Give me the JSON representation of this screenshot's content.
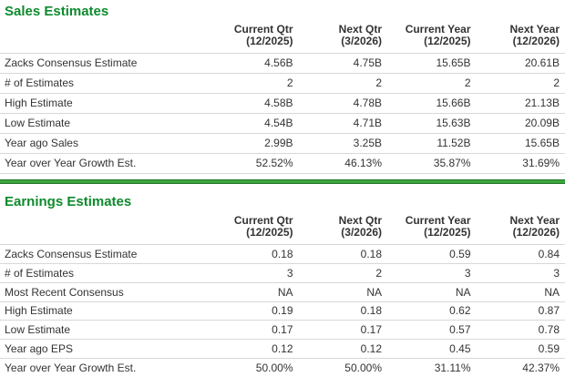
{
  "colors": {
    "title_green": "#0e8a2d",
    "divider_green": "#3fa43f",
    "divider_edge_green": "#1e7a24",
    "row_border": "#d8d8d8",
    "text": "#333333",
    "background": "#ffffff"
  },
  "sales": {
    "title": "Sales Estimates",
    "columns": [
      {
        "line1": "Current Qtr",
        "line2": "(12/2025)"
      },
      {
        "line1": "Next Qtr",
        "line2": "(3/2026)"
      },
      {
        "line1": "Current Year",
        "line2": "(12/2025)"
      },
      {
        "line1": "Next Year",
        "line2": "(12/2026)"
      }
    ],
    "rows": [
      {
        "label": "Zacks Consensus Estimate",
        "values": [
          "4.56B",
          "4.75B",
          "15.65B",
          "20.61B"
        ]
      },
      {
        "label": "# of Estimates",
        "values": [
          "2",
          "2",
          "2",
          "2"
        ]
      },
      {
        "label": "High Estimate",
        "values": [
          "4.58B",
          "4.78B",
          "15.66B",
          "21.13B"
        ]
      },
      {
        "label": "Low Estimate",
        "values": [
          "4.54B",
          "4.71B",
          "15.63B",
          "20.09B"
        ]
      },
      {
        "label": "Year ago Sales",
        "values": [
          "2.99B",
          "3.25B",
          "11.52B",
          "15.65B"
        ]
      },
      {
        "label": "Year over Year Growth Est.",
        "values": [
          "52.52%",
          "46.13%",
          "35.87%",
          "31.69%"
        ]
      }
    ]
  },
  "earnings": {
    "title": "Earnings Estimates",
    "columns": [
      {
        "line1": "Current Qtr",
        "line2": "(12/2025)"
      },
      {
        "line1": "Next Qtr",
        "line2": "(3/2026)"
      },
      {
        "line1": "Current Year",
        "line2": "(12/2025)"
      },
      {
        "line1": "Next Year",
        "line2": "(12/2026)"
      }
    ],
    "rows": [
      {
        "label": "Zacks Consensus Estimate",
        "values": [
          "0.18",
          "0.18",
          "0.59",
          "0.84"
        ]
      },
      {
        "label": "# of Estimates",
        "values": [
          "3",
          "2",
          "3",
          "3"
        ]
      },
      {
        "label": "Most Recent Consensus",
        "values": [
          "NA",
          "NA",
          "NA",
          "NA"
        ]
      },
      {
        "label": "High Estimate",
        "values": [
          "0.19",
          "0.18",
          "0.62",
          "0.87"
        ]
      },
      {
        "label": "Low Estimate",
        "values": [
          "0.17",
          "0.17",
          "0.57",
          "0.78"
        ]
      },
      {
        "label": "Year ago EPS",
        "values": [
          "0.12",
          "0.12",
          "0.45",
          "0.59"
        ]
      },
      {
        "label": "Year over Year Growth Est.",
        "values": [
          "50.00%",
          "50.00%",
          "31.11%",
          "42.37%"
        ]
      }
    ]
  }
}
